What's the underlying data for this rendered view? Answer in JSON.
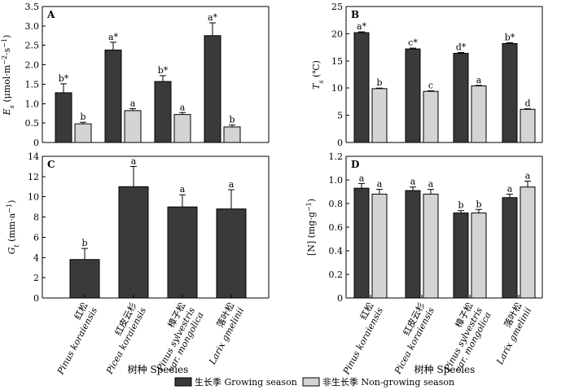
{
  "colors": {
    "growing": "#3a3a3a",
    "nongrowing": "#d4d4d4",
    "edge": "#000000"
  },
  "x_axis_title": "树种 Species",
  "legend": [
    {
      "key": "growing",
      "label": "生长季 Growing season"
    },
    {
      "key": "nongrowing",
      "label": "非生长季 Non-growing season"
    }
  ],
  "species": [
    {
      "cn": "红松",
      "latin": [
        "Pinus koraiensis"
      ]
    },
    {
      "cn": "红皮云杉",
      "latin": [
        "Picea koraiensis"
      ]
    },
    {
      "cn": "樟子松",
      "latin": [
        "Pinus sylvestris",
        "var. mongolica"
      ]
    },
    {
      "cn": "落叶松",
      "latin": [
        "Larix gmelinii"
      ]
    }
  ],
  "chart_data": [
    {
      "panel": "A",
      "type": "bar",
      "ylabel": [
        "E",
        "s",
        " (μmol·m",
        "−2",
        "·s",
        "−1",
        ")"
      ],
      "ylim": [
        0,
        3.5
      ],
      "yticks": [
        "0",
        "0.5",
        "1.0",
        "1.5",
        "2.0",
        "2.5",
        "3.0",
        "3.5"
      ],
      "series": [
        {
          "key": "growing",
          "values": [
            1.28,
            2.38,
            1.57,
            2.75
          ],
          "errors": [
            0.23,
            0.2,
            0.15,
            0.33
          ],
          "labels": [
            "b*",
            "a*",
            "b*",
            "a*"
          ]
        },
        {
          "key": "nongrowing",
          "values": [
            0.48,
            0.82,
            0.72,
            0.4
          ],
          "errors": [
            0.04,
            0.05,
            0.05,
            0.05
          ],
          "labels": [
            "b",
            "a",
            "a",
            "b"
          ]
        }
      ]
    },
    {
      "panel": "B",
      "type": "bar",
      "ylabel": [
        "T",
        "s",
        " (℃)"
      ],
      "ylim": [
        0,
        25
      ],
      "yticks": [
        "0",
        "5",
        "10",
        "15",
        "20",
        "25"
      ],
      "series": [
        {
          "key": "growing",
          "values": [
            20.2,
            17.2,
            16.4,
            18.2
          ],
          "errors": [
            0.15,
            0.15,
            0.15,
            0.15
          ],
          "labels": [
            "a*",
            "c*",
            "d*",
            "b*"
          ]
        },
        {
          "key": "nongrowing",
          "values": [
            9.9,
            9.4,
            10.4,
            6.1
          ],
          "errors": [
            0.1,
            0.1,
            0.1,
            0.1
          ],
          "labels": [
            "b",
            "c",
            "a",
            "d"
          ]
        }
      ]
    },
    {
      "panel": "C",
      "type": "bar",
      "ylabel": [
        "G",
        "t",
        " (mm·a",
        "−1",
        ")"
      ],
      "ylim": [
        0,
        14
      ],
      "yticks": [
        "0",
        "2",
        "4",
        "6",
        "8",
        "10",
        "12",
        "14"
      ],
      "series": [
        {
          "key": "growing",
          "values": [
            3.8,
            11.0,
            9.0,
            8.8
          ],
          "errors": [
            1.1,
            2.0,
            1.2,
            1.9
          ],
          "labels": [
            "b",
            "a",
            "a",
            "a"
          ]
        }
      ]
    },
    {
      "panel": "D",
      "type": "bar",
      "ylabel": [
        "[N] (mg·g",
        "−1",
        ")"
      ],
      "ylim": [
        0,
        1.2
      ],
      "yticks": [
        "0",
        "0.2",
        "0.4",
        "0.6",
        "0.8",
        "1.0",
        "1.2"
      ],
      "series": [
        {
          "key": "growing",
          "values": [
            0.93,
            0.91,
            0.72,
            0.85
          ],
          "errors": [
            0.04,
            0.03,
            0.02,
            0.03
          ],
          "labels": [
            "a",
            "a",
            "b",
            "a"
          ]
        },
        {
          "key": "nongrowing",
          "values": [
            0.88,
            0.88,
            0.72,
            0.94
          ],
          "errors": [
            0.04,
            0.04,
            0.03,
            0.05
          ],
          "labels": [
            "a",
            "a",
            "b",
            "a"
          ]
        }
      ]
    }
  ]
}
